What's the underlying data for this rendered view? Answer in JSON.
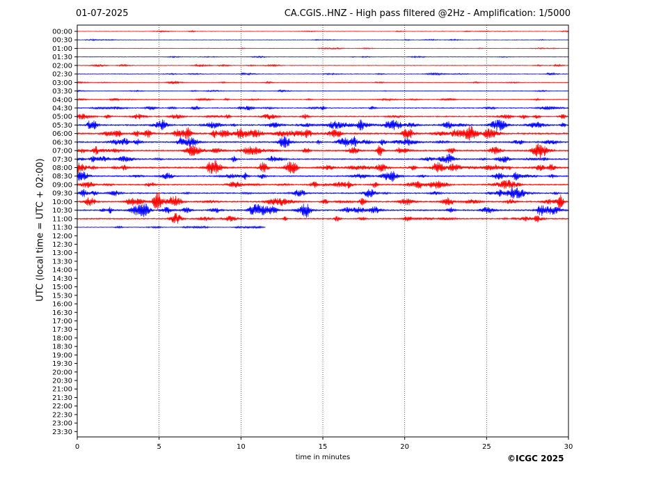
{
  "header": {
    "date": "01-07-2025",
    "title": "CA.CGIS..HNZ - High pass filtered @2Hz - Amplification: 1/5000"
  },
  "footer": {
    "copyright": "©ICGC 2025"
  },
  "colors": {
    "trace_a": "#ff0000",
    "trace_b": "#0000ff",
    "axis": "#000000",
    "grid": "#000000",
    "background": "#ffffff"
  },
  "chart_data": {
    "type": "line",
    "subtype": "helicorder",
    "title": "CA.CGIS..HNZ - High pass filtered @2Hz - Amplification: 1/5000",
    "xlabel": "time in minutes",
    "ylabel": "UTC (local time = UTC + 02:00)",
    "xlim": [
      0,
      30
    ],
    "x_ticks": [
      "0",
      "5",
      "10",
      "15",
      "20",
      "25",
      "30"
    ],
    "x_tick_values": [
      0,
      5,
      10,
      15,
      20,
      25,
      30
    ],
    "grid": "vertical dotted lines at 5-minute ticks",
    "rows": [
      "00:00",
      "00:30",
      "01:00",
      "01:30",
      "02:00",
      "02:30",
      "03:00",
      "03:30",
      "04:00",
      "04:30",
      "05:00",
      "05:30",
      "06:00",
      "06:30",
      "07:00",
      "07:30",
      "08:00",
      "08:30",
      "09:00",
      "09:30",
      "10:00",
      "10:30",
      "11:00",
      "11:30",
      "12:00",
      "12:30",
      "13:00",
      "13:30",
      "14:00",
      "14:30",
      "15:00",
      "15:30",
      "16:00",
      "16:30",
      "17:00",
      "17:30",
      "18:00",
      "18:30",
      "19:00",
      "19:30",
      "20:00",
      "20:30",
      "21:00",
      "21:30",
      "22:00",
      "22:30",
      "23:00",
      "23:30"
    ],
    "trace_end_minutes": [
      30,
      30,
      30,
      30,
      30,
      30,
      30,
      30,
      30,
      30,
      30,
      30,
      30,
      30,
      30,
      30,
      30,
      30,
      30,
      30,
      30,
      30,
      30,
      11.5
    ],
    "trace_colors_alternate": [
      "red",
      "blue"
    ],
    "relative_activity": [
      0.1,
      0.1,
      0.1,
      0.1,
      0.2,
      0.2,
      0.15,
      0.15,
      0.25,
      0.4,
      0.55,
      0.7,
      0.9,
      0.7,
      0.7,
      0.6,
      0.8,
      0.6,
      0.6,
      0.6,
      0.7,
      0.7,
      0.6,
      0.2
    ]
  }
}
